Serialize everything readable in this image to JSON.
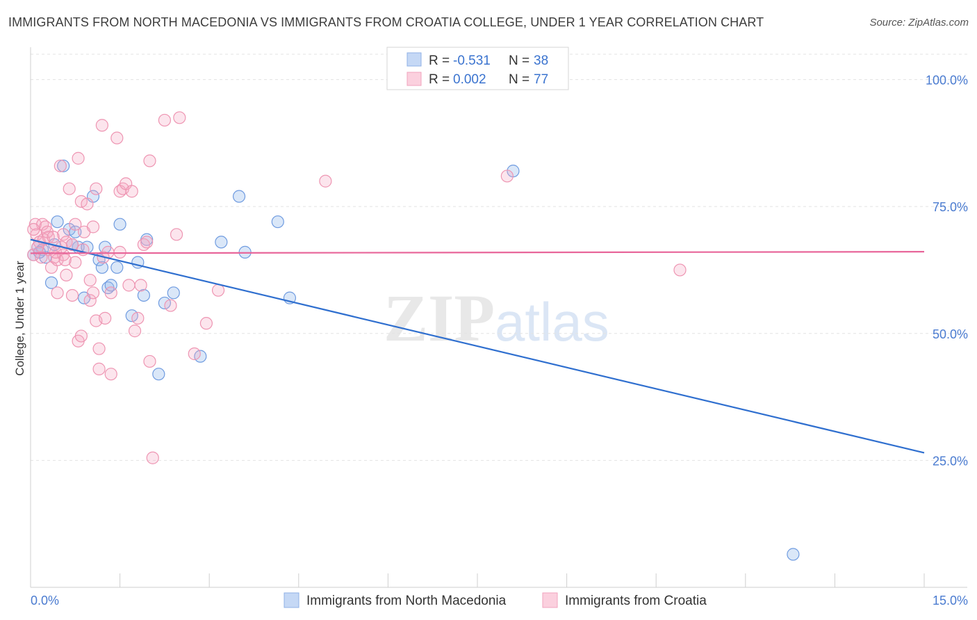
{
  "title": "IMMIGRANTS FROM NORTH MACEDONIA VS IMMIGRANTS FROM CROATIA COLLEGE, UNDER 1 YEAR CORRELATION CHART",
  "source": "Source: ZipAtlas.com",
  "watermark": {
    "zip": "ZIP",
    "atlas": "atlas"
  },
  "legend_stats": [
    {
      "r_label": "R =",
      "r_value": "-0.531",
      "n_label": "N =",
      "n_value": "38",
      "color": "#a9c4ec"
    },
    {
      "r_label": "R =",
      "r_value": "0.002",
      "n_label": "N =",
      "n_value": "77",
      "color": "#f5b8cb"
    }
  ],
  "chart_data": {
    "type": "scatter",
    "title": "IMMIGRANTS FROM NORTH MACEDONIA VS IMMIGRANTS FROM CROATIA COLLEGE, UNDER 1 YEAR CORRELATION CHART",
    "xlabel": "",
    "ylabel": "College, Under 1 year",
    "xlim": [
      0,
      15
    ],
    "ylim": [
      0,
      105
    ],
    "x_tick_labels": [
      "0.0%",
      "15.0%"
    ],
    "y_ticks": [
      25,
      50,
      75,
      100
    ],
    "y_tick_labels": [
      "25.0%",
      "50.0%",
      "75.0%",
      "100.0%"
    ],
    "grid": "horizontal dashed",
    "legend_position": "bottom",
    "series": [
      {
        "name": "Immigrants from North Macedonia",
        "color": "#7aa6e6",
        "line_color": "#2f6fcf",
        "trend": [
          [
            0,
            68.5
          ],
          [
            15,
            26.5
          ]
        ],
        "points": [
          [
            0.05,
            65.5
          ],
          [
            0.12,
            67
          ],
          [
            0.2,
            66.5
          ],
          [
            0.25,
            65
          ],
          [
            0.35,
            60
          ],
          [
            0.45,
            72
          ],
          [
            0.55,
            83
          ],
          [
            0.65,
            70.5
          ],
          [
            0.75,
            70
          ],
          [
            0.8,
            67
          ],
          [
            0.9,
            57
          ],
          [
            0.95,
            67
          ],
          [
            1.05,
            77
          ],
          [
            1.15,
            64.5
          ],
          [
            1.2,
            63
          ],
          [
            1.3,
            59
          ],
          [
            1.35,
            59.5
          ],
          [
            1.45,
            63
          ],
          [
            1.5,
            71.5
          ],
          [
            1.7,
            53.5
          ],
          [
            1.8,
            64
          ],
          [
            1.9,
            57.5
          ],
          [
            1.95,
            68.5
          ],
          [
            2.15,
            42
          ],
          [
            2.25,
            56
          ],
          [
            2.4,
            58
          ],
          [
            2.85,
            45.5
          ],
          [
            3.2,
            68
          ],
          [
            3.5,
            77
          ],
          [
            3.6,
            66
          ],
          [
            4.15,
            72
          ],
          [
            4.35,
            57
          ],
          [
            8.1,
            82
          ],
          [
            12.8,
            6.5
          ],
          [
            0.15,
            66
          ],
          [
            0.7,
            67.5
          ],
          [
            1.25,
            67
          ],
          [
            0.4,
            67.5
          ]
        ]
      },
      {
        "name": "Immigrants from Croatia",
        "color": "#f2a3bd",
        "line_color": "#e8669a",
        "trend": [
          [
            0,
            65.8
          ],
          [
            15,
            66.1
          ]
        ],
        "points": [
          [
            0.05,
            65.5
          ],
          [
            0.08,
            71.5
          ],
          [
            0.1,
            69.5
          ],
          [
            0.15,
            68
          ],
          [
            0.2,
            71.5
          ],
          [
            0.25,
            71
          ],
          [
            0.3,
            69
          ],
          [
            0.3,
            66.5
          ],
          [
            0.35,
            63
          ],
          [
            0.4,
            65
          ],
          [
            0.45,
            58
          ],
          [
            0.45,
            64.5
          ],
          [
            0.5,
            83
          ],
          [
            0.55,
            65.5
          ],
          [
            0.55,
            69.5
          ],
          [
            0.6,
            68
          ],
          [
            0.6,
            61.5
          ],
          [
            0.65,
            78.5
          ],
          [
            0.7,
            57.5
          ],
          [
            0.7,
            67.5
          ],
          [
            0.75,
            71.5
          ],
          [
            0.75,
            64
          ],
          [
            0.8,
            84.5
          ],
          [
            0.8,
            48.5
          ],
          [
            0.85,
            76
          ],
          [
            0.85,
            49.5
          ],
          [
            0.9,
            70
          ],
          [
            0.95,
            75.5
          ],
          [
            1.0,
            56.5
          ],
          [
            1.0,
            60.5
          ],
          [
            1.05,
            58
          ],
          [
            1.05,
            71
          ],
          [
            1.1,
            52.5
          ],
          [
            1.1,
            78.5
          ],
          [
            1.15,
            47
          ],
          [
            1.15,
            43
          ],
          [
            1.2,
            91
          ],
          [
            1.25,
            53
          ],
          [
            1.3,
            66
          ],
          [
            1.35,
            42
          ],
          [
            1.35,
            58
          ],
          [
            1.45,
            88.5
          ],
          [
            1.5,
            78
          ],
          [
            1.5,
            66
          ],
          [
            1.55,
            78.5
          ],
          [
            1.6,
            79.5
          ],
          [
            1.65,
            59.5
          ],
          [
            1.7,
            78
          ],
          [
            1.75,
            50.5
          ],
          [
            1.8,
            53
          ],
          [
            1.85,
            59.5
          ],
          [
            1.9,
            67.5
          ],
          [
            1.95,
            68
          ],
          [
            2.0,
            84
          ],
          [
            2.0,
            44.5
          ],
          [
            2.05,
            25.5
          ],
          [
            2.25,
            92
          ],
          [
            2.35,
            55.5
          ],
          [
            2.45,
            69.5
          ],
          [
            2.5,
            92.5
          ],
          [
            2.75,
            46
          ],
          [
            2.95,
            52
          ],
          [
            3.15,
            58.5
          ],
          [
            4.95,
            80
          ],
          [
            8.0,
            81
          ],
          [
            10.9,
            62.5
          ],
          [
            0.05,
            70.5
          ],
          [
            0.12,
            67
          ],
          [
            0.18,
            65
          ],
          [
            0.22,
            68.5
          ],
          [
            0.28,
            70
          ],
          [
            0.38,
            69
          ],
          [
            0.42,
            66
          ],
          [
            0.52,
            67
          ],
          [
            0.58,
            64.5
          ],
          [
            0.88,
            66.5
          ],
          [
            1.22,
            65
          ]
        ]
      }
    ]
  }
}
